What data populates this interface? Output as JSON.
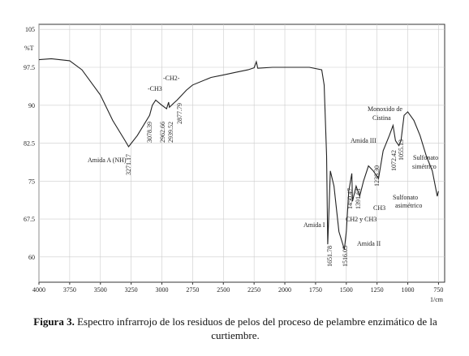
{
  "chart_data": {
    "type": "line",
    "y_label": "%T",
    "x_label": "1/cm",
    "x": [
      4000,
      3900,
      3750,
      3650,
      3500,
      3400,
      3300,
      3271,
      3200,
      3100,
      3078,
      3050,
      3000,
      2962,
      2945,
      2939,
      2900,
      2877,
      2800,
      2750,
      2600,
      2500,
      2400,
      2300,
      2250,
      2232,
      2220,
      2100,
      2000,
      1900,
      1800,
      1700,
      1680,
      1660,
      1651,
      1640,
      1630,
      1600,
      1560,
      1516,
      1500,
      1480,
      1455,
      1450,
      1420,
      1391,
      1360,
      1320,
      1280,
      1238,
      1200,
      1150,
      1120,
      1100,
      1072,
      1055,
      1030,
      1000,
      950,
      900,
      850,
      800,
      760,
      750
    ],
    "values": [
      99,
      99.2,
      98.8,
      97,
      92,
      87,
      83,
      81.8,
      84,
      88,
      90,
      91,
      90,
      89.3,
      90.6,
      89.6,
      90.5,
      91,
      93,
      94,
      95.5,
      96,
      96.5,
      97,
      97.4,
      98.6,
      97.3,
      97.5,
      97.5,
      97.5,
      97.5,
      97,
      94,
      80,
      62.5,
      70,
      77,
      74,
      65,
      61.5,
      65,
      73,
      76.5,
      71,
      74,
      72,
      75,
      78,
      77,
      75.5,
      81,
      84,
      86,
      83,
      82,
      83,
      88,
      88.7,
      87,
      84,
      80,
      77,
      72,
      73
    ],
    "color": "#222222",
    "xlim": [
      4000,
      700
    ],
    "xticks": [
      4000,
      3750,
      3500,
      3250,
      3000,
      2750,
      2500,
      2250,
      2000,
      1750,
      1500,
      1250,
      1000,
      750
    ],
    "ylim": [
      55,
      106
    ],
    "yticks": [
      105,
      97.5,
      90,
      82.5,
      75,
      67.5,
      60
    ],
    "grid": true,
    "annotations": [
      "Amida A (NH)",
      "3271.17",
      "-CH3",
      "-CH2-",
      "3078.39",
      "2962.66",
      "2939.52",
      "2877.79",
      "Amida I",
      "1651.78",
      "1516.05",
      "Amida II",
      "1450.47",
      "1391.61",
      "CH2 y CH3",
      "CH3",
      "1238.30",
      "Amida III",
      "Monoxido de",
      "Cistina",
      "1072.42",
      "1055.13",
      "Sulfonato",
      "asimétrico",
      "Sulfonato",
      "simétrico"
    ]
  },
  "caption": {
    "label": "Figura 3.",
    "text": "Espectro infrarrojo de los residuos de pelos del proceso de pelambre enzimático de la curtiembre."
  }
}
